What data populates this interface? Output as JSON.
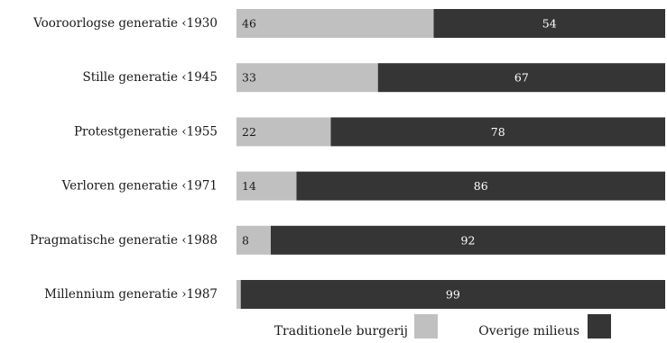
{
  "chart_data": {
    "type": "bar",
    "orientation": "horizontal",
    "stacked": true,
    "categories": [
      "Vooroorlogse generatie ‹1930",
      "Stille generatie ‹1945",
      "Protestgeneratie ‹1955",
      "Verloren generatie ‹1971",
      "Pragmatische generatie ‹1988",
      "Millennium generatie ›1987"
    ],
    "series": [
      {
        "name": "Traditionele burgerij",
        "values": [
          46,
          33,
          22,
          14,
          8,
          1
        ],
        "color": "#c0c0c0",
        "label_color": "#1a1a1a"
      },
      {
        "name": "Overige milieus",
        "values": [
          54,
          67,
          78,
          86,
          92,
          99
        ],
        "color": "#353535",
        "label_color": "#ffffff"
      }
    ],
    "xlim": [
      0,
      100
    ],
    "grid": false,
    "legend": "bottom",
    "title": "",
    "xlabel": "",
    "ylabel": ""
  }
}
